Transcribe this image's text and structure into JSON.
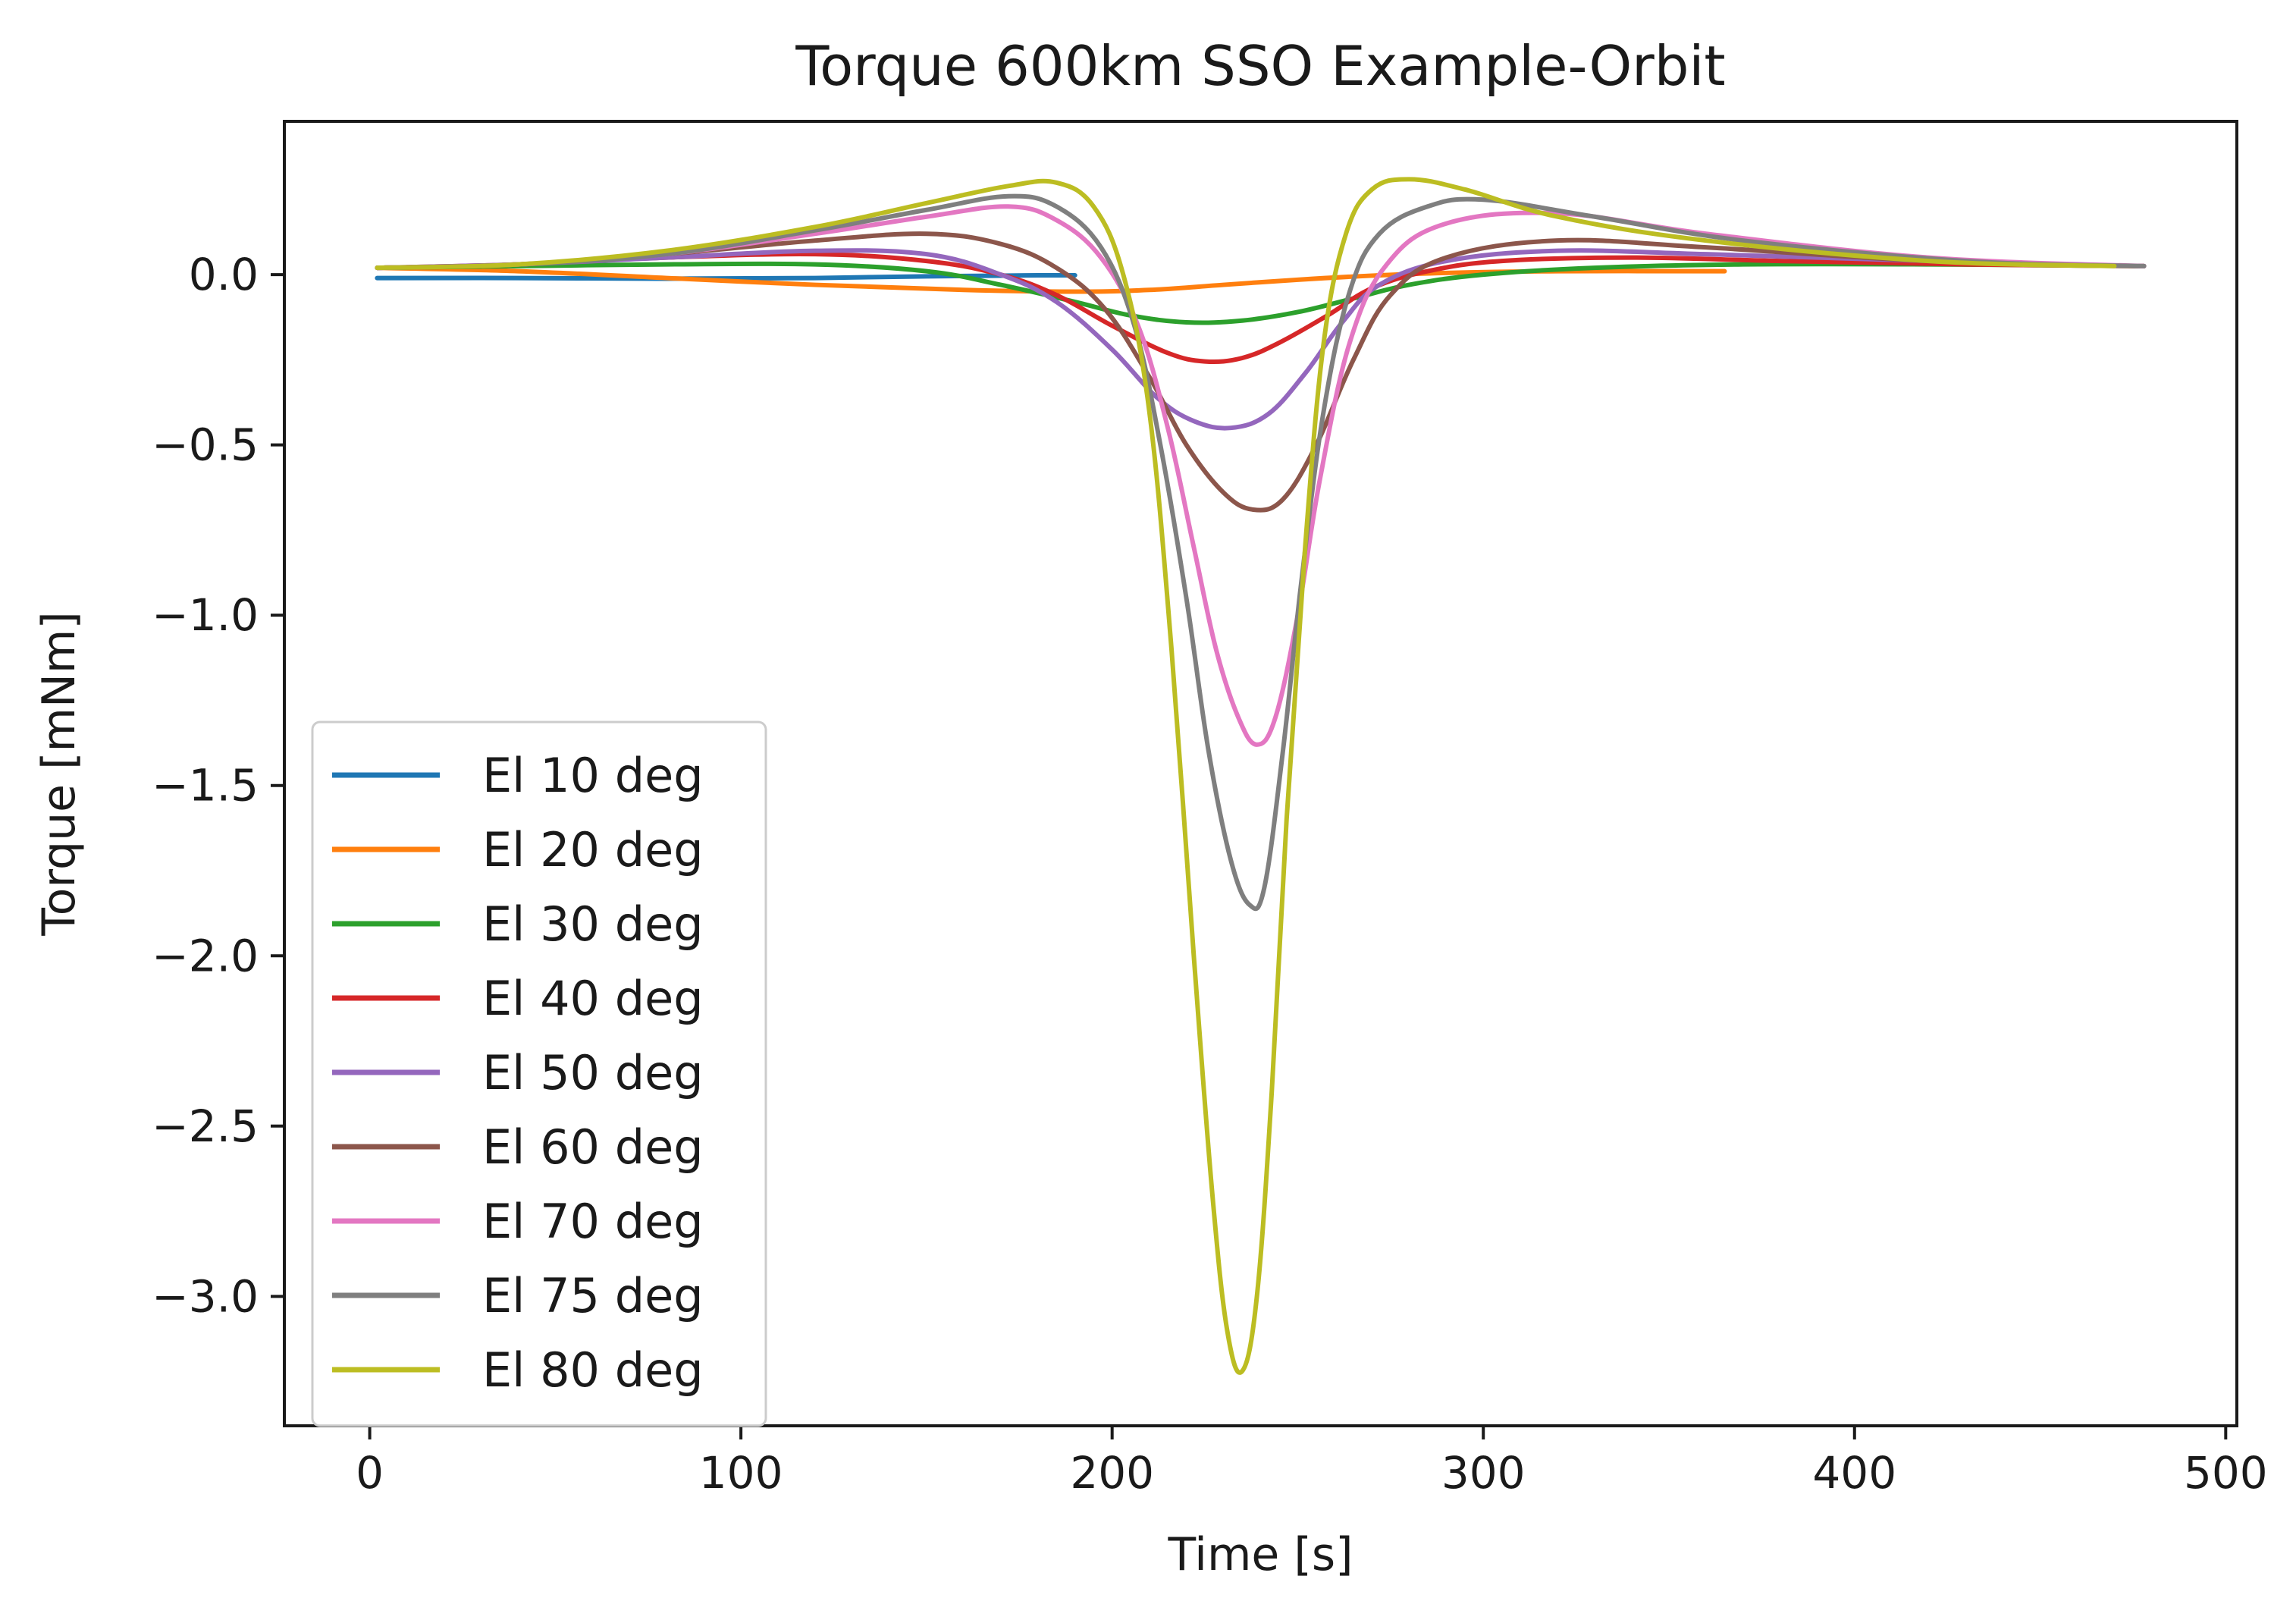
{
  "chart_data": {
    "type": "line",
    "title": "Torque 600km SSO Example-Orbit",
    "xlabel": "Time [s]",
    "ylabel": "Torque [mNm]",
    "xlim": [
      -23,
      503
    ],
    "ylim": [
      -3.38,
      0.45
    ],
    "xticks": [
      0,
      100,
      200,
      300,
      400,
      500
    ],
    "xtick_labels": [
      "0",
      "100",
      "200",
      "300",
      "400",
      "500"
    ],
    "yticks": [
      0.0,
      -0.5,
      -1.0,
      -1.5,
      -2.0,
      -2.5,
      -3.0
    ],
    "ytick_labels": [
      "0.0",
      "−0.5",
      "−1.0",
      "−1.5",
      "−2.0",
      "−2.5",
      "−3.0"
    ],
    "grid": false,
    "legend_position": "lower-left",
    "series": [
      {
        "name": "El 10 deg",
        "color": "#1f77b4",
        "x": [
          2,
          40,
          80,
          120,
          150,
          170,
          180,
          190
        ],
        "y": [
          -0.01,
          -0.01,
          -0.012,
          -0.01,
          -0.005,
          -0.003,
          -0.002,
          -0.002
        ]
      },
      {
        "name": "El 20 deg",
        "color": "#ff7f0e",
        "x": [
          2,
          40,
          80,
          120,
          160,
          190,
          210,
          230,
          250,
          270,
          290,
          320,
          365
        ],
        "y": [
          0.02,
          0.01,
          -0.01,
          -0.03,
          -0.045,
          -0.05,
          -0.045,
          -0.03,
          -0.015,
          -0.003,
          0.005,
          0.01,
          0.01
        ]
      },
      {
        "name": "El 30 deg",
        "color": "#2ca02c",
        "x": [
          2,
          40,
          80,
          120,
          150,
          170,
          190,
          205,
          220,
          235,
          250,
          265,
          280,
          300,
          330,
          370,
          420,
          478
        ],
        "y": [
          0.02,
          0.025,
          0.03,
          0.03,
          0.01,
          -0.03,
          -0.08,
          -0.12,
          -0.14,
          -0.135,
          -0.11,
          -0.07,
          -0.03,
          0.0,
          0.02,
          0.03,
          0.03,
          0.025
        ]
      },
      {
        "name": "El 40 deg",
        "color": "#d62728",
        "x": [
          2,
          40,
          80,
          120,
          150,
          170,
          185,
          200,
          215,
          225,
          235,
          245,
          258,
          270,
          285,
          305,
          340,
          380,
          430,
          478
        ],
        "y": [
          0.02,
          0.03,
          0.05,
          0.06,
          0.04,
          0.0,
          -0.06,
          -0.15,
          -0.23,
          -0.255,
          -0.245,
          -0.2,
          -0.12,
          -0.04,
          0.01,
          0.04,
          0.05,
          0.04,
          0.03,
          0.025
        ]
      },
      {
        "name": "El 50 deg",
        "color": "#9467bd",
        "x": [
          2,
          40,
          80,
          120,
          150,
          170,
          185,
          200,
          212,
          222,
          232,
          242,
          252,
          262,
          272,
          290,
          320,
          360,
          420,
          478
        ],
        "y": [
          0.02,
          0.03,
          0.05,
          0.07,
          0.06,
          0.0,
          -0.08,
          -0.22,
          -0.36,
          -0.43,
          -0.45,
          -0.41,
          -0.29,
          -0.14,
          -0.03,
          0.04,
          0.07,
          0.06,
          0.04,
          0.025
        ]
      },
      {
        "name": "El 60 deg",
        "color": "#8c564b",
        "x": [
          2,
          40,
          80,
          120,
          150,
          170,
          185,
          198,
          210,
          220,
          230,
          238,
          246,
          255,
          265,
          275,
          290,
          320,
          360,
          420,
          478
        ],
        "y": [
          0.02,
          0.03,
          0.06,
          0.1,
          0.12,
          0.09,
          0.02,
          -0.1,
          -0.3,
          -0.5,
          -0.64,
          -0.69,
          -0.66,
          -0.5,
          -0.25,
          -0.06,
          0.05,
          0.1,
          0.08,
          0.04,
          0.025
        ]
      },
      {
        "name": "El 70 deg",
        "color": "#e377c2",
        "x": [
          2,
          40,
          80,
          120,
          150,
          172,
          185,
          197,
          207,
          215,
          222,
          228,
          234,
          239,
          244,
          250,
          256,
          264,
          274,
          290,
          320,
          360,
          420,
          478
        ],
        "y": [
          0.02,
          0.03,
          0.06,
          0.12,
          0.17,
          0.2,
          0.16,
          0.05,
          -0.15,
          -0.45,
          -0.8,
          -1.1,
          -1.3,
          -1.38,
          -1.3,
          -1.0,
          -0.6,
          -0.2,
          0.03,
          0.15,
          0.18,
          0.12,
          0.05,
          0.025
        ]
      },
      {
        "name": "El 75 deg",
        "color": "#7f7f7f",
        "x": [
          2,
          40,
          80,
          120,
          150,
          172,
          185,
          197,
          206,
          213,
          220,
          226,
          232,
          237,
          241,
          246,
          251,
          257,
          264,
          272,
          285,
          300,
          330,
          370,
          430,
          478
        ],
        "y": [
          0.02,
          0.03,
          0.06,
          0.13,
          0.19,
          0.23,
          0.2,
          0.08,
          -0.15,
          -0.5,
          -0.95,
          -1.4,
          -1.72,
          -1.85,
          -1.8,
          -1.4,
          -0.9,
          -0.4,
          -0.05,
          0.12,
          0.2,
          0.22,
          0.17,
          0.1,
          0.04,
          0.025
        ]
      },
      {
        "name": "El 80 deg",
        "color": "#bcbd22",
        "x": [
          2,
          40,
          80,
          120,
          150,
          172,
          185,
          195,
          203,
          210,
          216,
          222,
          227,
          231,
          235,
          239,
          243,
          247,
          252,
          257,
          263,
          270,
          280,
          295,
          320,
          360,
          420,
          470
        ],
        "y": [
          0.02,
          0.03,
          0.07,
          0.14,
          0.21,
          0.26,
          0.27,
          0.2,
          0.0,
          -0.4,
          -1.1,
          -2.0,
          -2.7,
          -3.1,
          -3.22,
          -3.0,
          -2.4,
          -1.6,
          -0.8,
          -0.2,
          0.12,
          0.25,
          0.28,
          0.25,
          0.17,
          0.1,
          0.04,
          0.025
        ]
      }
    ]
  }
}
